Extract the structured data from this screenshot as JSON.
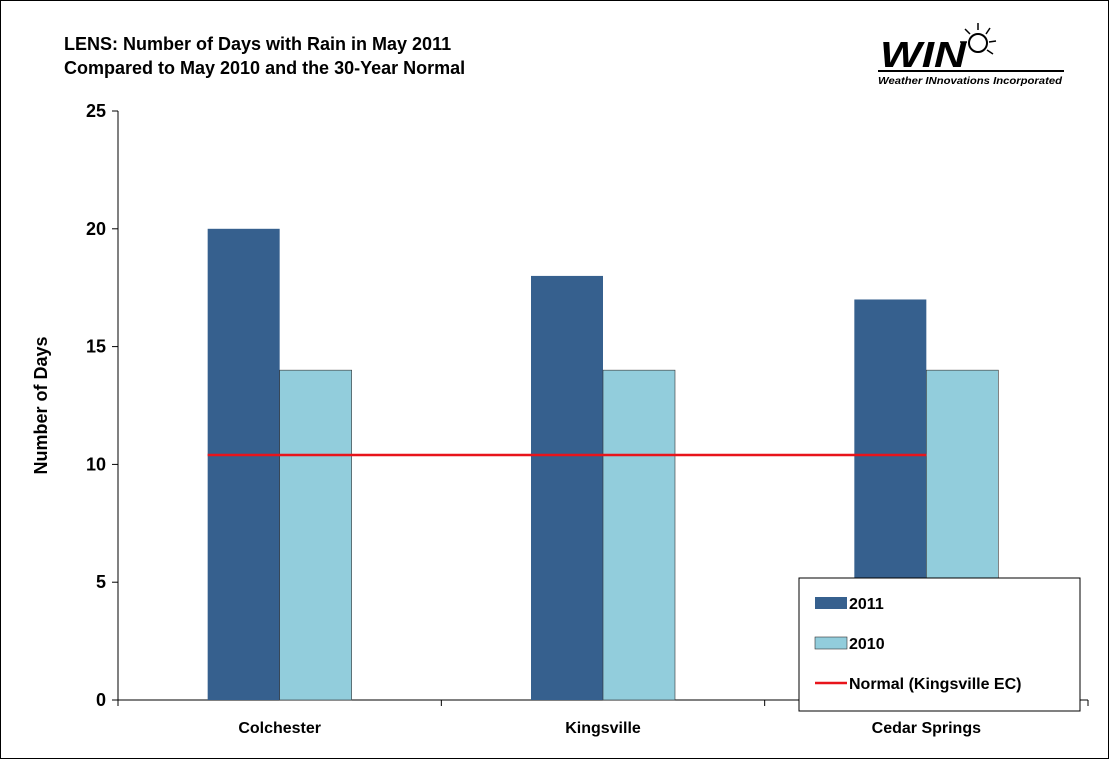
{
  "title_line1": "LENS: Number of Days with Rain in May 2011",
  "title_line2": "Compared to May 2010 and the 30-Year Normal",
  "logo": {
    "mark": "WIN",
    "tagline": "Weather INnovations Incorporated",
    "icon": "sun-icon"
  },
  "colors": {
    "series_2011": "#36608E",
    "series_2010": "#92CDDC",
    "normal_line": "#E8141B"
  },
  "chart_data": {
    "type": "bar",
    "title": "LENS: Number of Days with Rain in May 2011 Compared to May 2010 and the 30-Year Normal",
    "xlabel": "",
    "ylabel": "Number of Days",
    "categories": [
      "Colchester",
      "Kingsville",
      "Cedar Springs"
    ],
    "series": [
      {
        "name": "2011",
        "values": [
          20,
          18,
          17
        ]
      },
      {
        "name": "2010",
        "values": [
          14,
          14,
          14
        ]
      }
    ],
    "reference_line": {
      "name": "Normal (Kingsville EC)",
      "value": 10.4
    },
    "ylim": [
      0,
      25
    ],
    "yticks": [
      "0",
      "5",
      "10",
      "15",
      "20",
      "25"
    ],
    "grid": false,
    "legend_position": "bottom-right"
  }
}
